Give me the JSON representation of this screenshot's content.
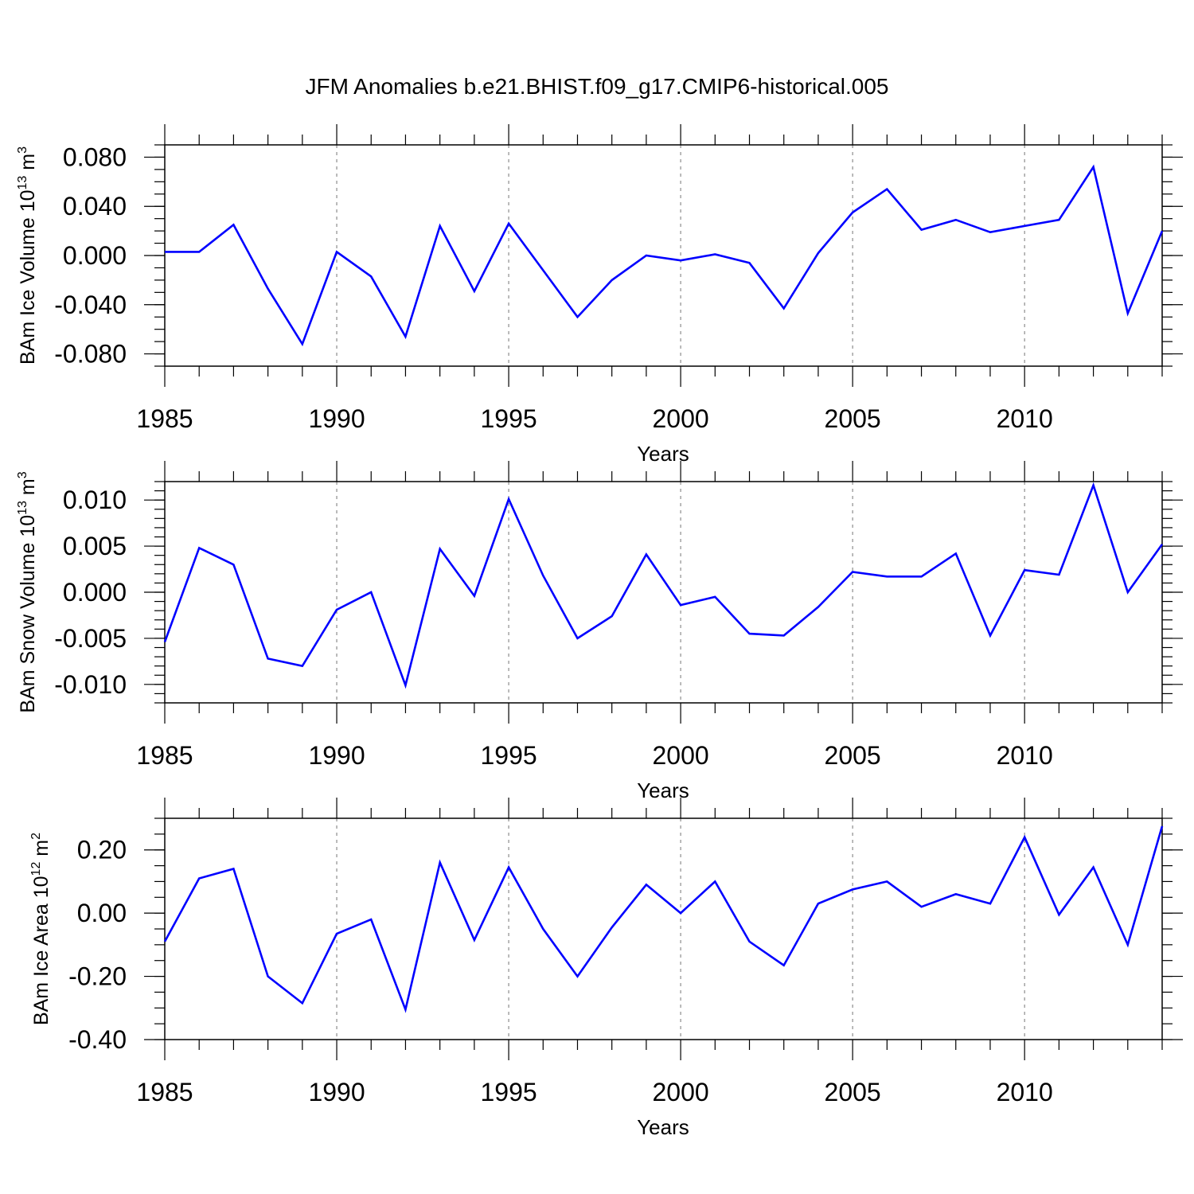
{
  "title": "JFM Anomalies b.e21.BHIST.f09_g17.CMIP6-historical.005",
  "colors": {
    "line": "#0000ff",
    "axis": "#000000",
    "grid": "#8c8c8c"
  },
  "chart_data": [
    {
      "type": "line",
      "ylabel": "BAm Ice Volume 10",
      "ylabel_exp": "13",
      "ylabel_unit": " m",
      "ylabel_unit_exp": "3",
      "xlabel": "Years",
      "xlim": [
        1985,
        2014
      ],
      "ylim": [
        -0.09,
        0.09
      ],
      "yticks": [
        -0.08,
        -0.04,
        0.0,
        0.04,
        0.08
      ],
      "ytick_labels": [
        "-0.080",
        "-0.040",
        "0.000",
        "0.040",
        "0.080"
      ],
      "yminor_step": 0.01,
      "xticks": [
        1985,
        1990,
        1995,
        2000,
        2005,
        2010
      ],
      "xtick_labels": [
        "1985",
        "1990",
        "1995",
        "2000",
        "2005",
        "2010"
      ],
      "grid_x": [
        1990,
        1995,
        2000,
        2005,
        2010
      ],
      "x": [
        1985,
        1986,
        1987,
        1988,
        1989,
        1990,
        1991,
        1992,
        1993,
        1994,
        1995,
        1996,
        1997,
        1998,
        1999,
        2000,
        2001,
        2002,
        2003,
        2004,
        2005,
        2006,
        2007,
        2008,
        2009,
        2010,
        2011,
        2012,
        2013,
        2014
      ],
      "values": [
        0.003,
        0.003,
        0.025,
        -0.027,
        -0.072,
        0.003,
        -0.017,
        -0.066,
        0.024,
        -0.029,
        0.026,
        -0.012,
        -0.05,
        -0.02,
        0.0,
        -0.004,
        0.001,
        -0.006,
        -0.043,
        0.002,
        0.035,
        0.054,
        0.021,
        0.029,
        0.019,
        0.024,
        0.029,
        0.072,
        -0.047,
        0.02
      ]
    },
    {
      "type": "line",
      "ylabel": "BAm Snow Volume 10",
      "ylabel_exp": "13",
      "ylabel_unit": " m",
      "ylabel_unit_exp": "3",
      "xlabel": "Years",
      "xlim": [
        1985,
        2014
      ],
      "ylim": [
        -0.012,
        0.012
      ],
      "yticks": [
        -0.01,
        -0.005,
        0.0,
        0.005,
        0.01
      ],
      "ytick_labels": [
        "-0.010",
        "-0.005",
        "0.000",
        "0.005",
        "0.010"
      ],
      "yminor_step": 0.001,
      "xticks": [
        1985,
        1990,
        1995,
        2000,
        2005,
        2010
      ],
      "xtick_labels": [
        "1985",
        "1990",
        "1995",
        "2000",
        "2005",
        "2010"
      ],
      "grid_x": [
        1990,
        1995,
        2000,
        2005,
        2010
      ],
      "x": [
        1985,
        1986,
        1987,
        1988,
        1989,
        1990,
        1991,
        1992,
        1993,
        1994,
        1995,
        1996,
        1997,
        1998,
        1999,
        2000,
        2001,
        2002,
        2003,
        2004,
        2005,
        2006,
        2007,
        2008,
        2009,
        2010,
        2011,
        2012,
        2013,
        2014
      ],
      "values": [
        -0.0054,
        0.0048,
        0.003,
        -0.0072,
        -0.008,
        -0.0019,
        0.0,
        -0.0101,
        0.0047,
        -0.0004,
        0.0101,
        0.0018,
        -0.005,
        -0.0026,
        0.0041,
        -0.0014,
        -0.0005,
        -0.0045,
        -0.0047,
        -0.0016,
        0.0022,
        0.0017,
        0.0017,
        0.0042,
        -0.0047,
        0.0024,
        0.0019,
        0.0116,
        0.0,
        0.0052
      ]
    },
    {
      "type": "line",
      "ylabel": "BAm Ice Area 10",
      "ylabel_exp": "12",
      "ylabel_unit": " m",
      "ylabel_unit_exp": "2",
      "xlabel": "Years",
      "xlim": [
        1985,
        2014
      ],
      "ylim": [
        -0.4,
        0.3
      ],
      "yticks": [
        -0.4,
        -0.2,
        0.0,
        0.2
      ],
      "ytick_labels": [
        "-0.40",
        "-0.20",
        "0.00",
        "0.20"
      ],
      "yminor_step": 0.05,
      "xticks": [
        1985,
        1990,
        1995,
        2000,
        2005,
        2010
      ],
      "xtick_labels": [
        "1985",
        "1990",
        "1995",
        "2000",
        "2005",
        "2010"
      ],
      "grid_x": [
        1990,
        1995,
        2000,
        2005,
        2010
      ],
      "x": [
        1985,
        1986,
        1987,
        1988,
        1989,
        1990,
        1991,
        1992,
        1993,
        1994,
        1995,
        1996,
        1997,
        1998,
        1999,
        2000,
        2001,
        2002,
        2003,
        2004,
        2005,
        2006,
        2007,
        2008,
        2009,
        2010,
        2011,
        2012,
        2013,
        2014
      ],
      "values": [
        -0.09,
        0.11,
        0.14,
        -0.2,
        -0.285,
        -0.065,
        -0.02,
        -0.305,
        0.16,
        -0.085,
        0.145,
        -0.05,
        -0.2,
        -0.045,
        0.09,
        0.0,
        0.1,
        -0.09,
        -0.165,
        0.03,
        0.075,
        0.1,
        0.02,
        0.06,
        0.03,
        0.24,
        -0.005,
        0.145,
        -0.1,
        0.275
      ]
    }
  ]
}
